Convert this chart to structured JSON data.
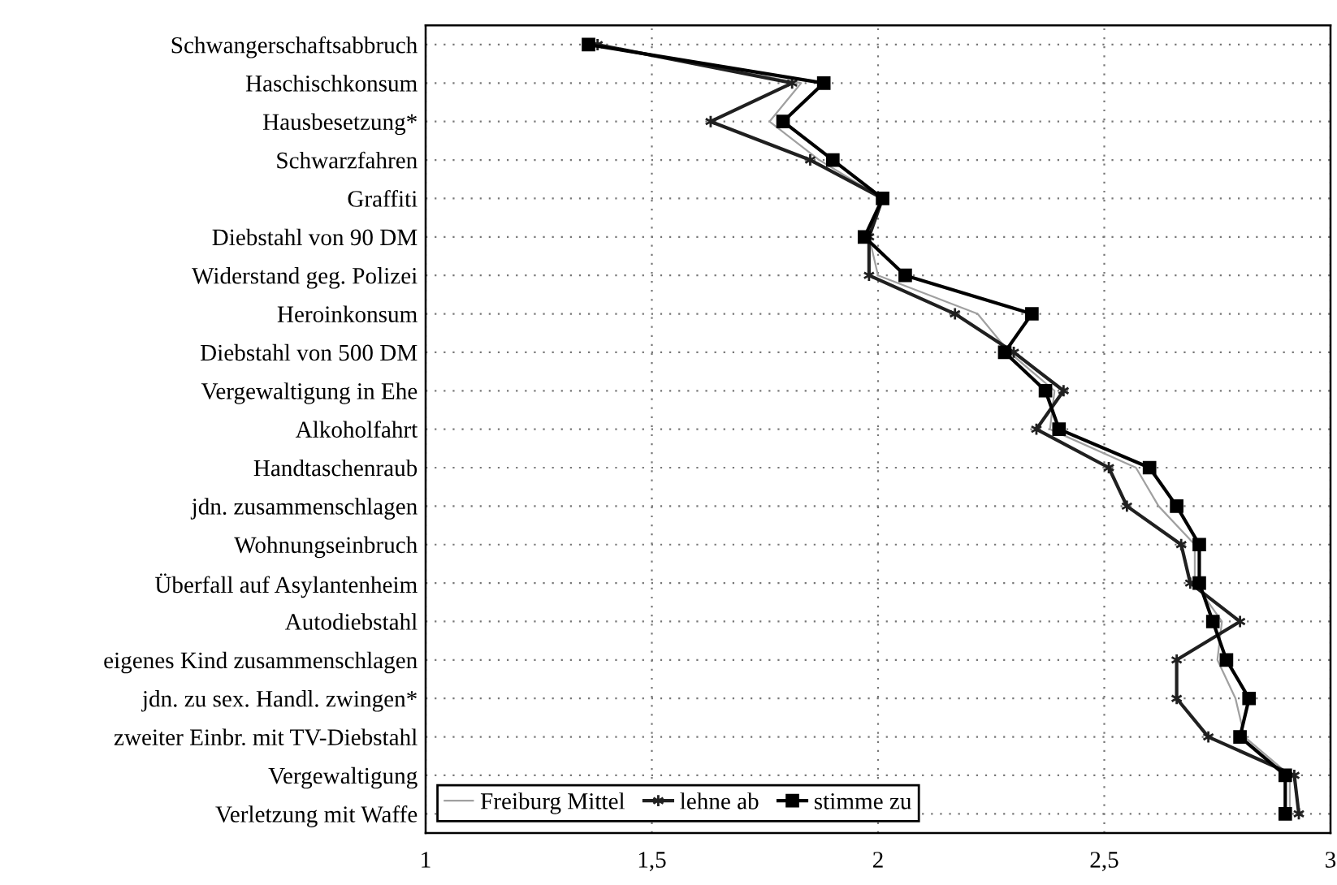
{
  "chart_data": {
    "type": "line",
    "orientation": "horizontal",
    "categories": [
      "Schwangerschaftsabbruch",
      "Haschischkonsum",
      "Hausbesetzung*",
      "Schwarzfahren",
      "Graffiti",
      "Diebstahl von 90 DM",
      "Widerstand geg. Polizei",
      "Heroinkonsum",
      "Diebstahl von 500 DM",
      "Vergewaltigung in Ehe",
      "Alkoholfahrt",
      "Handtaschenraub",
      "jdn. zusammenschlagen",
      "Wohnungseinbruch",
      "Überfall auf Asylantenheim",
      "Autodiebstahl",
      "eigenes Kind zusammenschlagen",
      "jdn. zu sex. Handl. zwingen*",
      "zweiter Einbr. mit TV-Diebstahl",
      "Vergewaltigung",
      "Verletzung mit Waffe"
    ],
    "series": [
      {
        "name": "Freiburg Mittel",
        "color": "#a0a0a0",
        "marker": "none",
        "values": [
          1.37,
          1.83,
          1.76,
          1.87,
          2.01,
          1.98,
          2.0,
          2.22,
          2.29,
          2.39,
          2.38,
          2.57,
          2.62,
          2.7,
          2.7,
          2.76,
          2.75,
          2.79,
          2.81,
          2.91,
          2.91
        ]
      },
      {
        "name": "lehne ab",
        "color": "#202020",
        "marker": "cross",
        "values": [
          1.38,
          1.81,
          1.63,
          1.85,
          2.01,
          1.98,
          1.98,
          2.17,
          2.3,
          2.41,
          2.35,
          2.51,
          2.55,
          2.67,
          2.69,
          2.8,
          2.66,
          2.66,
          2.73,
          2.92,
          2.93
        ]
      },
      {
        "name": "stimme zu",
        "color": "#000000",
        "marker": "square",
        "values": [
          1.36,
          1.88,
          1.79,
          1.9,
          2.01,
          1.97,
          2.06,
          2.34,
          2.28,
          2.37,
          2.4,
          2.6,
          2.66,
          2.71,
          2.71,
          2.74,
          2.77,
          2.82,
          2.8,
          2.9,
          2.9
        ]
      }
    ],
    "xlim": [
      1,
      3
    ],
    "xticks": [
      {
        "value": 1,
        "label": "1"
      },
      {
        "value": 1.5,
        "label": "1,5"
      },
      {
        "value": 2,
        "label": "2"
      },
      {
        "value": 2.5,
        "label": "2,5"
      },
      {
        "value": 3,
        "label": "3"
      }
    ],
    "grid": true,
    "legend": "bottom left",
    "line_style": "solid"
  }
}
